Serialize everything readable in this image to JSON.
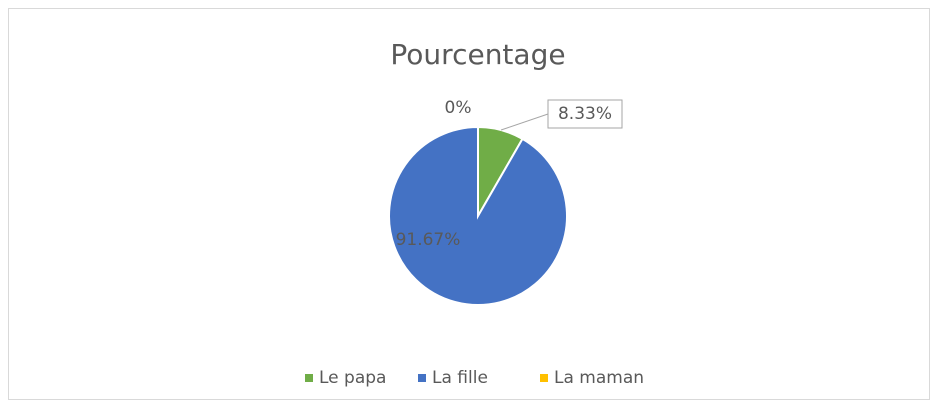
{
  "chart_data": {
    "type": "pie",
    "title": "Pourcentage",
    "categories": [
      "Le papa",
      "La fille",
      "La maman"
    ],
    "values": [
      8.33,
      91.67,
      0
    ],
    "value_labels": [
      "8.33%",
      "91.67%",
      "0%"
    ],
    "colors": [
      "#70ad47",
      "#4472c4",
      "#ffc000"
    ],
    "legend": "bottom"
  }
}
